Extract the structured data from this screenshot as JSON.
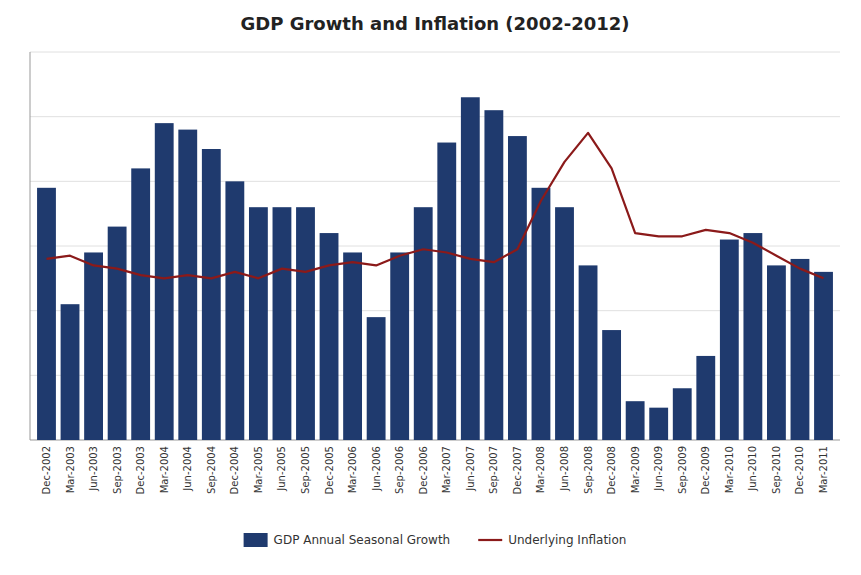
{
  "chart_data": {
    "type": "bar",
    "title": "GDP Growth and Inflation (2002-2012)",
    "categories": [
      "Dec-2002",
      "Mar-2003",
      "Jun-2003",
      "Sep-2003",
      "Dec-2003",
      "Mar-2004",
      "Jun-2004",
      "Sep-2004",
      "Dec-2004",
      "Mar-2005",
      "Jun-2005",
      "Sep-2005",
      "Dec-2005",
      "Mar-2006",
      "Jun-2006",
      "Sep-2006",
      "Dec-2006",
      "Mar-2007",
      "Jun-2007",
      "Sep-2007",
      "Dec-2007",
      "Mar-2008",
      "Jun-2008",
      "Sep-2008",
      "Dec-2008",
      "Mar-2009",
      "Jun-2009",
      "Sep-2009",
      "Dec-2009",
      "Mar-2010",
      "Jun-2010",
      "Sep-2010",
      "Dec-2010",
      "Mar-2011"
    ],
    "series": [
      {
        "name": "GDP Annual Seasonal Growth",
        "type": "bar",
        "color": "#1F3A6E",
        "values": [
          3.9,
          2.1,
          2.9,
          3.3,
          4.2,
          4.9,
          4.8,
          4.5,
          4.0,
          3.6,
          3.6,
          3.6,
          3.2,
          2.9,
          1.9,
          2.9,
          3.6,
          4.6,
          5.3,
          5.1,
          4.7,
          3.9,
          3.6,
          2.7,
          1.7,
          0.6,
          0.5,
          0.8,
          1.3,
          3.1,
          3.2,
          2.7,
          2.8,
          2.6
        ]
      },
      {
        "name": "Underlying Inflation",
        "type": "line",
        "color": "#8B1A1A",
        "values": [
          2.8,
          2.85,
          2.7,
          2.65,
          2.55,
          2.5,
          2.55,
          2.5,
          2.6,
          2.5,
          2.65,
          2.6,
          2.7,
          2.75,
          2.7,
          2.85,
          2.95,
          2.9,
          2.8,
          2.75,
          2.95,
          3.7,
          4.3,
          4.75,
          4.2,
          3.2,
          3.15,
          3.15,
          3.25,
          3.2,
          3.05,
          2.85,
          2.65,
          2.5
        ]
      }
    ],
    "ylim": [
      0,
      6
    ],
    "yticks": [
      1,
      2,
      3,
      4,
      5,
      6
    ],
    "grid": true,
    "tick_labels": "x",
    "legend": "bottom"
  }
}
